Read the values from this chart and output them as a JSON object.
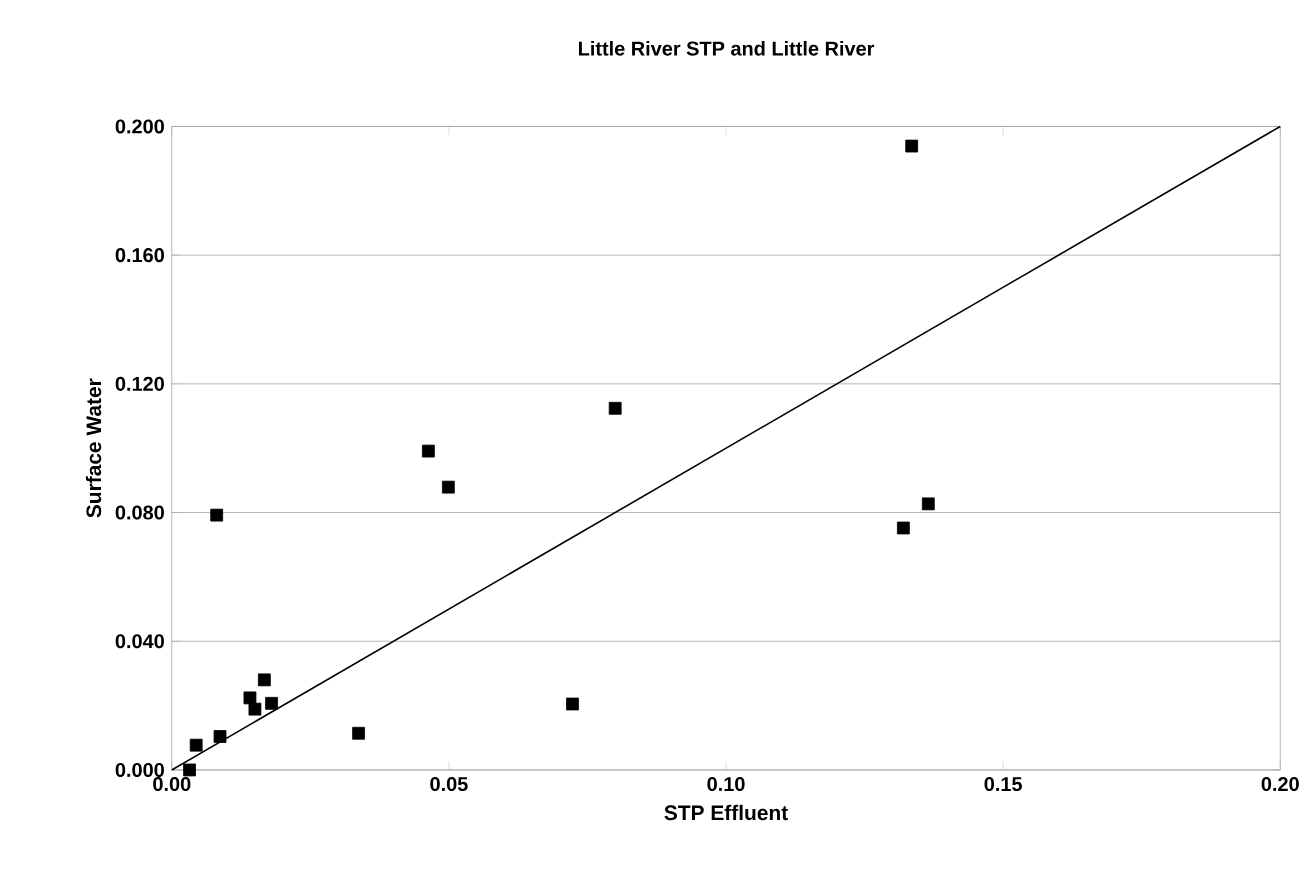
{
  "chart_data": {
    "type": "scatter",
    "title": "Little River STP and Little River",
    "xlabel": "STP Effluent",
    "ylabel": "Surface Water",
    "series": [
      {
        "color": "#000000",
        "marker": "square",
        "x": [
          0.0032,
          0.0044,
          0.0087,
          0.0081,
          0.0141,
          0.015,
          0.0167,
          0.018,
          0.0337,
          0.0463,
          0.0499,
          0.0723,
          0.08,
          0.1335,
          0.1365,
          0.132
        ],
        "values": [
          0.0,
          0.0077,
          0.0104,
          0.0792,
          0.0224,
          0.0189,
          0.028,
          0.0207,
          0.0114,
          0.0991,
          0.0879,
          0.0205,
          0.1124,
          0.1939,
          0.0827,
          0.0752
        ]
      },
      {
        "type": "line",
        "color": "#000000",
        "marker": "none",
        "line_style": "solid",
        "x": [
          0.0,
          0.2
        ],
        "values": [
          0.0,
          0.2
        ]
      }
    ],
    "xlim": [
      0,
      0.2
    ],
    "ylim": [
      0,
      0.2
    ],
    "xticks": [
      {
        "value": 0,
        "label": "0.00"
      },
      {
        "value": 0.05,
        "label": "0.05"
      },
      {
        "value": 0.1,
        "label": "0.10"
      },
      {
        "value": 0.15,
        "label": "0.15"
      },
      {
        "value": 0.2,
        "label": "0.20"
      }
    ],
    "yticks": [
      {
        "value": 0,
        "label": "0.000"
      },
      {
        "value": 0.04,
        "label": "0.040"
      },
      {
        "value": 0.08,
        "label": "0.080"
      },
      {
        "value": 0.12,
        "label": "0.120"
      },
      {
        "value": 0.16,
        "label": "0.160"
      },
      {
        "value": 0.2,
        "label": "0.200"
      }
    ],
    "grid": "y"
  }
}
